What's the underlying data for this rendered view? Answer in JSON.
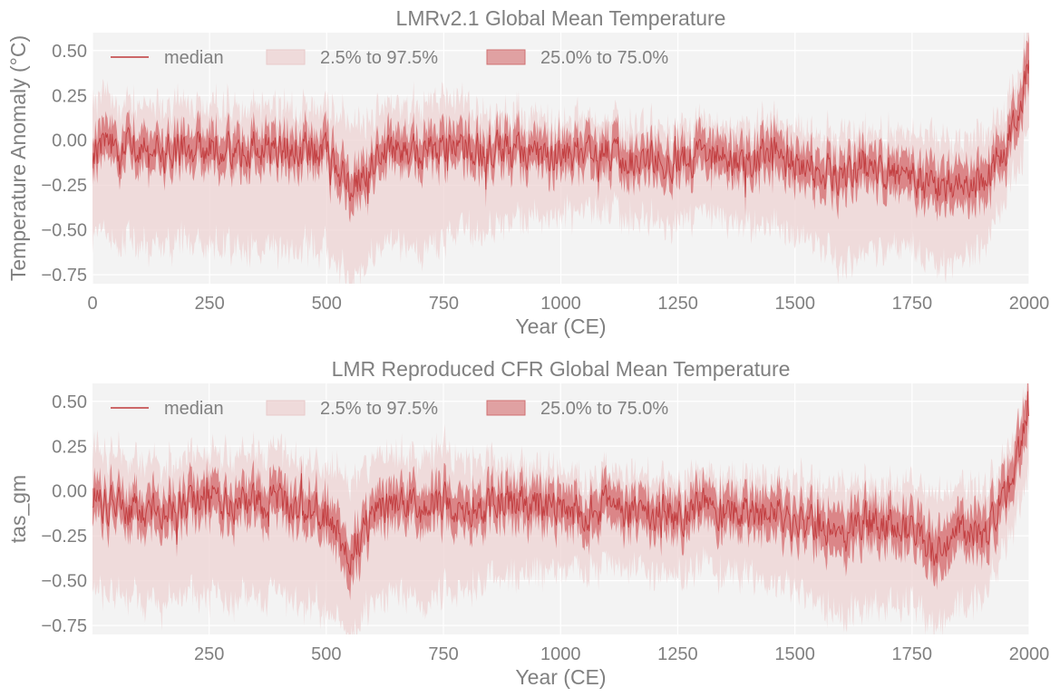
{
  "chart_data": [
    {
      "type": "line",
      "title": "LMRv2.1 Global Mean Temperature",
      "xlabel": "Year (CE)",
      "ylabel": "Temperature Anomaly (°C)",
      "xlim": [
        0,
        2000
      ],
      "ylim": [
        -0.8,
        0.6
      ],
      "xticks": [
        0,
        250,
        500,
        750,
        1000,
        1250,
        1500,
        1750,
        2000
      ],
      "xtick_labels": [
        "0",
        "250",
        "500",
        "750",
        "1000",
        "1250",
        "1500",
        "1750",
        "2000"
      ],
      "yticks": [
        -0.75,
        -0.5,
        -0.25,
        0.0,
        0.25,
        0.5
      ],
      "ytick_labels": [
        "−0.75",
        "−0.50",
        "−0.25",
        "0.00",
        "0.25",
        "0.50"
      ],
      "grid": true,
      "legend": {
        "position": "top",
        "entries": [
          "median",
          "2.5% to 97.5%",
          "25.0% to 75.0%"
        ]
      },
      "x": [
        0,
        50,
        100,
        150,
        200,
        250,
        300,
        350,
        400,
        450,
        500,
        550,
        600,
        650,
        700,
        750,
        800,
        850,
        900,
        950,
        1000,
        1050,
        1100,
        1150,
        1200,
        1250,
        1300,
        1350,
        1400,
        1450,
        1500,
        1550,
        1600,
        1650,
        1700,
        1750,
        1800,
        1850,
        1900,
        1950,
        2000
      ],
      "series": [
        {
          "name": "median",
          "values": [
            -0.05,
            -0.02,
            -0.06,
            -0.08,
            -0.05,
            -0.04,
            -0.07,
            -0.03,
            -0.04,
            -0.06,
            -0.08,
            -0.28,
            -0.1,
            -0.05,
            -0.08,
            -0.02,
            -0.06,
            -0.05,
            -0.07,
            -0.09,
            -0.08,
            -0.1,
            -0.07,
            -0.1,
            -0.11,
            -0.12,
            -0.09,
            -0.1,
            -0.12,
            -0.08,
            -0.15,
            -0.17,
            -0.19,
            -0.14,
            -0.17,
            -0.2,
            -0.28,
            -0.2,
            -0.22,
            -0.05,
            0.4
          ]
        },
        {
          "name": "25.0% to 75.0% lower",
          "values": [
            -0.15,
            -0.12,
            -0.16,
            -0.18,
            -0.15,
            -0.14,
            -0.17,
            -0.13,
            -0.14,
            -0.16,
            -0.18,
            -0.4,
            -0.2,
            -0.15,
            -0.18,
            -0.12,
            -0.16,
            -0.15,
            -0.17,
            -0.19,
            -0.18,
            -0.2,
            -0.17,
            -0.2,
            -0.21,
            -0.22,
            -0.19,
            -0.2,
            -0.22,
            -0.2,
            -0.26,
            -0.28,
            -0.3,
            -0.25,
            -0.28,
            -0.31,
            -0.4,
            -0.32,
            -0.34,
            -0.15,
            0.28
          ]
        },
        {
          "name": "25.0% to 75.0% upper",
          "values": [
            0.06,
            0.08,
            0.05,
            0.03,
            0.06,
            0.07,
            0.04,
            0.08,
            0.07,
            0.05,
            0.03,
            -0.16,
            0.01,
            0.06,
            0.03,
            0.1,
            0.05,
            0.06,
            0.04,
            0.02,
            0.03,
            0.01,
            0.04,
            0.01,
            0.0,
            -0.01,
            0.02,
            0.01,
            -0.01,
            0.04,
            -0.04,
            -0.06,
            -0.08,
            -0.03,
            -0.06,
            -0.09,
            -0.16,
            -0.08,
            -0.1,
            0.06,
            0.55
          ]
        },
        {
          "name": "2.5% to 97.5% lower",
          "values": [
            -0.52,
            -0.56,
            -0.58,
            -0.6,
            -0.55,
            -0.58,
            -0.6,
            -0.56,
            -0.58,
            -0.6,
            -0.62,
            -0.8,
            -0.6,
            -0.58,
            -0.62,
            -0.55,
            -0.5,
            -0.48,
            -0.46,
            -0.44,
            -0.4,
            -0.42,
            -0.4,
            -0.42,
            -0.44,
            -0.45,
            -0.42,
            -0.44,
            -0.46,
            -0.5,
            -0.55,
            -0.58,
            -0.7,
            -0.62,
            -0.6,
            -0.62,
            -0.72,
            -0.62,
            -0.6,
            -0.3,
            0.05
          ]
        },
        {
          "name": "2.5% to 97.5% upper",
          "values": [
            0.25,
            0.22,
            0.2,
            0.18,
            0.2,
            0.21,
            0.19,
            0.22,
            0.21,
            0.19,
            0.17,
            0.1,
            0.16,
            0.2,
            0.18,
            0.26,
            0.2,
            0.16,
            0.14,
            0.12,
            0.11,
            0.1,
            0.12,
            0.1,
            0.09,
            0.08,
            0.1,
            0.09,
            0.08,
            0.1,
            0.06,
            0.05,
            0.04,
            0.06,
            0.05,
            0.04,
            0.0,
            0.04,
            0.03,
            0.18,
            0.6
          ]
        }
      ],
      "colors": {
        "median": "#c0393b",
        "band_inner": "#d46a6c",
        "band_outer": "#edd3d3",
        "axes_bg": "#f3f3f3",
        "grid": "#ffffff",
        "text": "#808080"
      }
    },
    {
      "type": "line",
      "title": "LMR Reproduced CFR Global Mean Temperature",
      "xlabel": "Year (CE)",
      "ylabel": "tas_gm",
      "xlim": [
        1,
        2000
      ],
      "ylim": [
        -0.8,
        0.6
      ],
      "xticks": [
        250,
        500,
        750,
        1000,
        1250,
        1500,
        1750,
        2000
      ],
      "xtick_labels": [
        "250",
        "500",
        "750",
        "1000",
        "1250",
        "1500",
        "1750",
        "2000"
      ],
      "yticks": [
        -0.75,
        -0.5,
        -0.25,
        0.0,
        0.25,
        0.5
      ],
      "ytick_labels": [
        "−0.75",
        "−0.50",
        "−0.25",
        "0.00",
        "0.25",
        "0.50"
      ],
      "grid": true,
      "legend": {
        "position": "top",
        "entries": [
          "median",
          "2.5% to 97.5%",
          "25.0% to 75.0%"
        ]
      },
      "x": [
        1,
        50,
        100,
        150,
        200,
        250,
        300,
        350,
        400,
        450,
        500,
        550,
        600,
        650,
        700,
        750,
        800,
        850,
        900,
        950,
        1000,
        1050,
        1100,
        1150,
        1200,
        1250,
        1300,
        1350,
        1400,
        1450,
        1500,
        1550,
        1600,
        1650,
        1700,
        1750,
        1800,
        1850,
        1900,
        1950,
        2000
      ],
      "series": [
        {
          "name": "median",
          "values": [
            -0.06,
            -0.08,
            -0.1,
            -0.09,
            -0.07,
            -0.05,
            -0.08,
            -0.06,
            -0.07,
            -0.09,
            -0.12,
            -0.35,
            -0.13,
            -0.08,
            -0.1,
            -0.05,
            -0.08,
            -0.1,
            -0.06,
            -0.1,
            -0.09,
            -0.12,
            -0.08,
            -0.12,
            -0.13,
            -0.14,
            -0.1,
            -0.12,
            -0.13,
            -0.1,
            -0.2,
            -0.18,
            -0.25,
            -0.16,
            -0.19,
            -0.22,
            -0.34,
            -0.22,
            -0.25,
            -0.05,
            0.45
          ]
        },
        {
          "name": "25.0% to 75.0% lower",
          "values": [
            -0.17,
            -0.19,
            -0.21,
            -0.2,
            -0.18,
            -0.16,
            -0.19,
            -0.17,
            -0.18,
            -0.2,
            -0.23,
            -0.48,
            -0.24,
            -0.19,
            -0.21,
            -0.16,
            -0.19,
            -0.21,
            -0.17,
            -0.21,
            -0.2,
            -0.23,
            -0.19,
            -0.23,
            -0.24,
            -0.25,
            -0.21,
            -0.23,
            -0.24,
            -0.22,
            -0.31,
            -0.3,
            -0.38,
            -0.28,
            -0.31,
            -0.34,
            -0.48,
            -0.34,
            -0.38,
            -0.16,
            0.32
          ]
        },
        {
          "name": "25.0% to 75.0% upper",
          "values": [
            0.05,
            0.03,
            0.01,
            0.02,
            0.04,
            0.06,
            0.03,
            0.05,
            0.04,
            0.02,
            -0.01,
            -0.22,
            -0.02,
            0.03,
            0.01,
            0.07,
            0.03,
            0.01,
            0.05,
            0.01,
            0.02,
            -0.01,
            0.03,
            -0.01,
            -0.02,
            -0.03,
            0.01,
            -0.01,
            -0.02,
            0.02,
            -0.09,
            -0.06,
            -0.12,
            -0.04,
            -0.07,
            -0.1,
            -0.2,
            -0.1,
            -0.12,
            0.07,
            0.6
          ]
        },
        {
          "name": "2.5% to 97.5% lower",
          "values": [
            -0.55,
            -0.58,
            -0.6,
            -0.62,
            -0.57,
            -0.6,
            -0.62,
            -0.58,
            -0.6,
            -0.62,
            -0.65,
            -0.8,
            -0.63,
            -0.6,
            -0.64,
            -0.57,
            -0.52,
            -0.5,
            -0.48,
            -0.46,
            -0.42,
            -0.44,
            -0.42,
            -0.44,
            -0.46,
            -0.47,
            -0.44,
            -0.46,
            -0.48,
            -0.52,
            -0.57,
            -0.6,
            -0.72,
            -0.64,
            -0.62,
            -0.64,
            -0.74,
            -0.64,
            -0.62,
            -0.32,
            0.08
          ]
        },
        {
          "name": "2.5% to 97.5% upper",
          "values": [
            0.24,
            0.21,
            0.19,
            0.17,
            0.19,
            0.2,
            0.18,
            0.21,
            0.2,
            0.18,
            0.16,
            0.09,
            0.15,
            0.19,
            0.17,
            0.25,
            0.19,
            0.15,
            0.13,
            0.11,
            0.1,
            0.09,
            0.11,
            0.09,
            0.08,
            0.07,
            0.09,
            0.08,
            0.07,
            0.09,
            0.05,
            0.04,
            0.03,
            0.05,
            0.04,
            0.03,
            -0.01,
            0.03,
            0.02,
            0.17,
            0.6
          ]
        }
      ],
      "colors": {
        "median": "#c0393b",
        "band_inner": "#d46a6c",
        "band_outer": "#edd3d3",
        "axes_bg": "#f3f3f3",
        "grid": "#ffffff",
        "text": "#808080"
      }
    }
  ]
}
